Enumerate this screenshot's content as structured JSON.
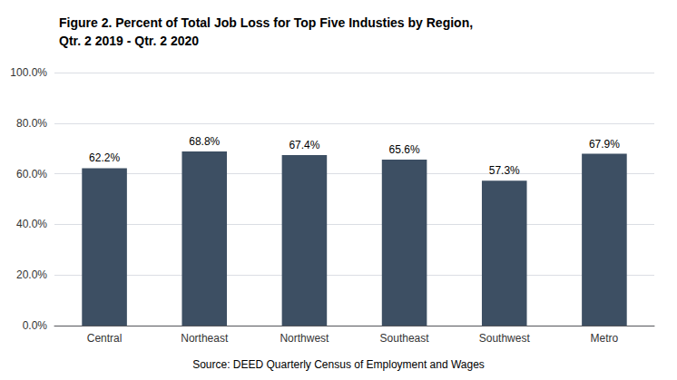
{
  "chart_data": {
    "type": "bar",
    "title": "Figure 2. Percent of Total Job Loss for Top Five Industies by Region,\nQtr. 2 2019 - Qtr. 2 2020",
    "source": "Source: DEED Quarterly Census of Employment and Wages",
    "categories": [
      "Central",
      "Northeast",
      "Northwest",
      "Southeast",
      "Southwest",
      "Metro"
    ],
    "values": [
      62.2,
      68.8,
      67.4,
      65.6,
      57.3,
      67.9
    ],
    "value_labels": [
      "62.2%",
      "68.8%",
      "67.4%",
      "65.6%",
      "57.3%",
      "67.9%"
    ],
    "data_labels": true,
    "color": "#3d4f63",
    "ylim": [
      0,
      100
    ],
    "yticks": [
      {
        "value": 0,
        "label": "0.0%"
      },
      {
        "value": 20,
        "label": "20.0%"
      },
      {
        "value": 40,
        "label": "40.0%"
      },
      {
        "value": 60,
        "label": "60.0%"
      },
      {
        "value": 80,
        "label": "80.0%"
      },
      {
        "value": 100,
        "label": "100.0%"
      }
    ],
    "grid": true
  }
}
